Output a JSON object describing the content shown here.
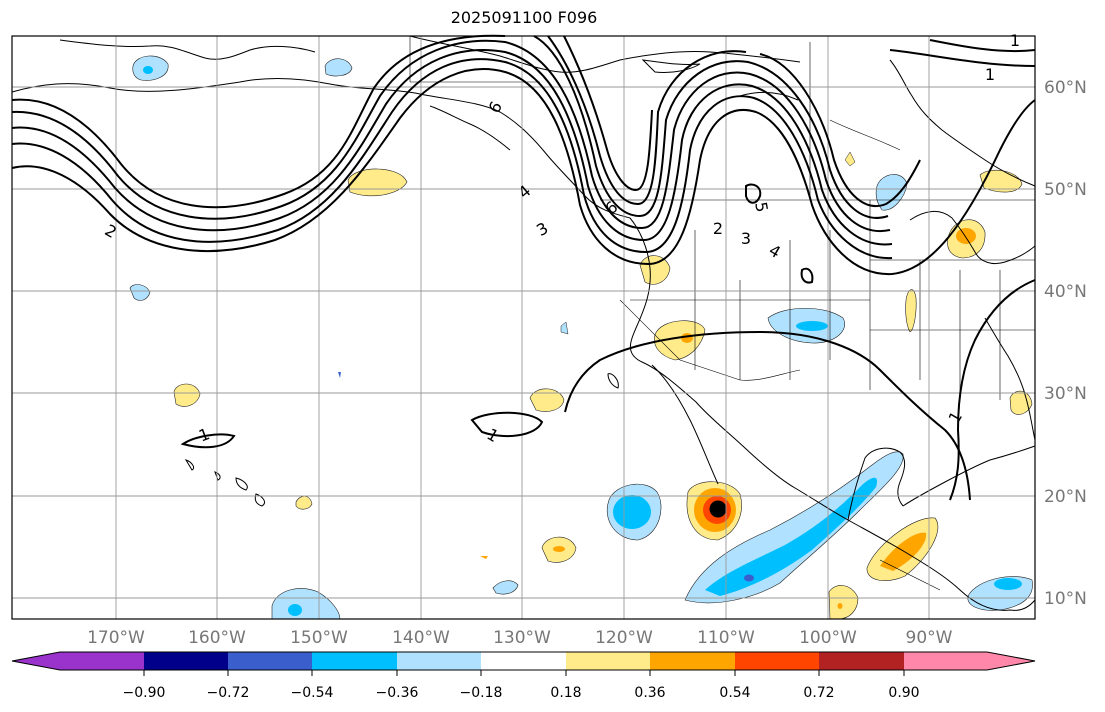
{
  "title": "2025091100 F096",
  "lon_labels": [
    "170°W",
    "160°W",
    "150°W",
    "140°W",
    "130°W",
    "120°W",
    "110°W",
    "100°W",
    "90°W"
  ],
  "lat_labels": [
    "60°N",
    "50°N",
    "40°N",
    "30°N",
    "20°N",
    "10°N"
  ],
  "contour_labels": [
    "1",
    "1",
    "1",
    "1",
    "2",
    "2",
    "3",
    "3",
    "4",
    "4",
    "5",
    "6",
    "6",
    "1"
  ],
  "colorbar": {
    "ticks": [
      "−0.90",
      "−0.72",
      "−0.54",
      "−0.36",
      "−0.18",
      "0.18",
      "0.36",
      "0.54",
      "0.72",
      "0.90"
    ],
    "colors": [
      "#9933cc",
      "#00008b",
      "#3a5fcd",
      "#00bfff",
      "#b0e2ff",
      "#ffffff",
      "#ffeb8a",
      "#ffa500",
      "#ff4500",
      "#b22222",
      "#ff88aa"
    ]
  }
}
